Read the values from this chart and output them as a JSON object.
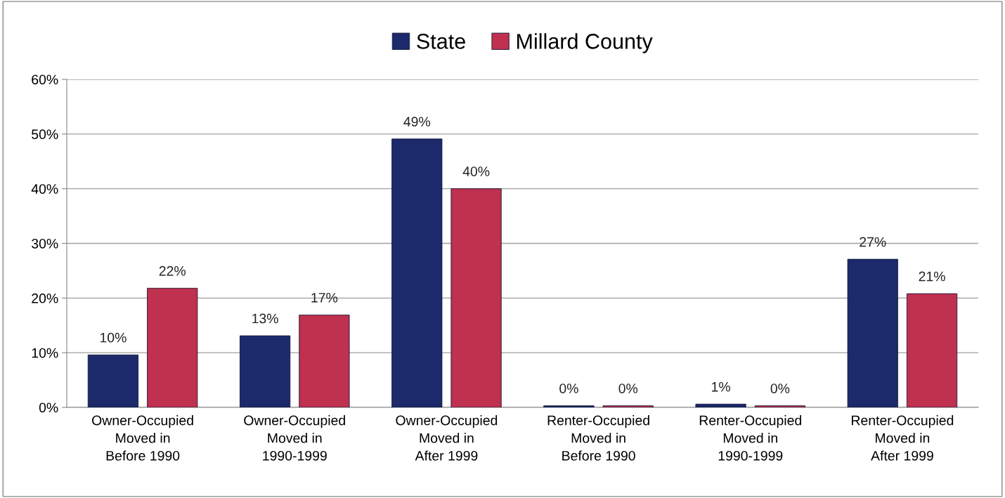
{
  "chart_data": {
    "type": "bar",
    "categories": [
      "Owner-Occupied\nMoved in\nBefore 1990",
      "Owner-Occupied\nMoved in\n1990-1999",
      "Owner-Occupied\nMoved in\nAfter 1999",
      "Renter-Occupied\nMoved in\nBefore 1990",
      "Renter-Occupied\nMoved in\n1990-1999",
      "Renter-Occupied\nMoved in\nAfter 1999"
    ],
    "series": [
      {
        "name": "State",
        "color": "#1c2a6b",
        "values": [
          9.6,
          13.1,
          49.1,
          0.3,
          0.6,
          27.1
        ],
        "value_labels": [
          "10%",
          "13%",
          "49%",
          "0%",
          "1%",
          "27%"
        ]
      },
      {
        "name": "Millard County",
        "color": "#c0304f",
        "values": [
          21.8,
          16.9,
          40.0,
          0.3,
          0.3,
          20.8
        ],
        "value_labels": [
          "22%",
          "17%",
          "40%",
          "0%",
          "0%",
          "21%"
        ]
      }
    ],
    "ylim": [
      0,
      60
    ],
    "yticks": [
      {
        "value": 0,
        "label": "0%"
      },
      {
        "value": 10,
        "label": "10%"
      },
      {
        "value": 20,
        "label": "20%"
      },
      {
        "value": 30,
        "label": "30%"
      },
      {
        "value": 40,
        "label": "40%"
      },
      {
        "value": 50,
        "label": "50%"
      },
      {
        "value": 60,
        "label": "60%"
      }
    ],
    "grid": "y",
    "legend": "top"
  }
}
